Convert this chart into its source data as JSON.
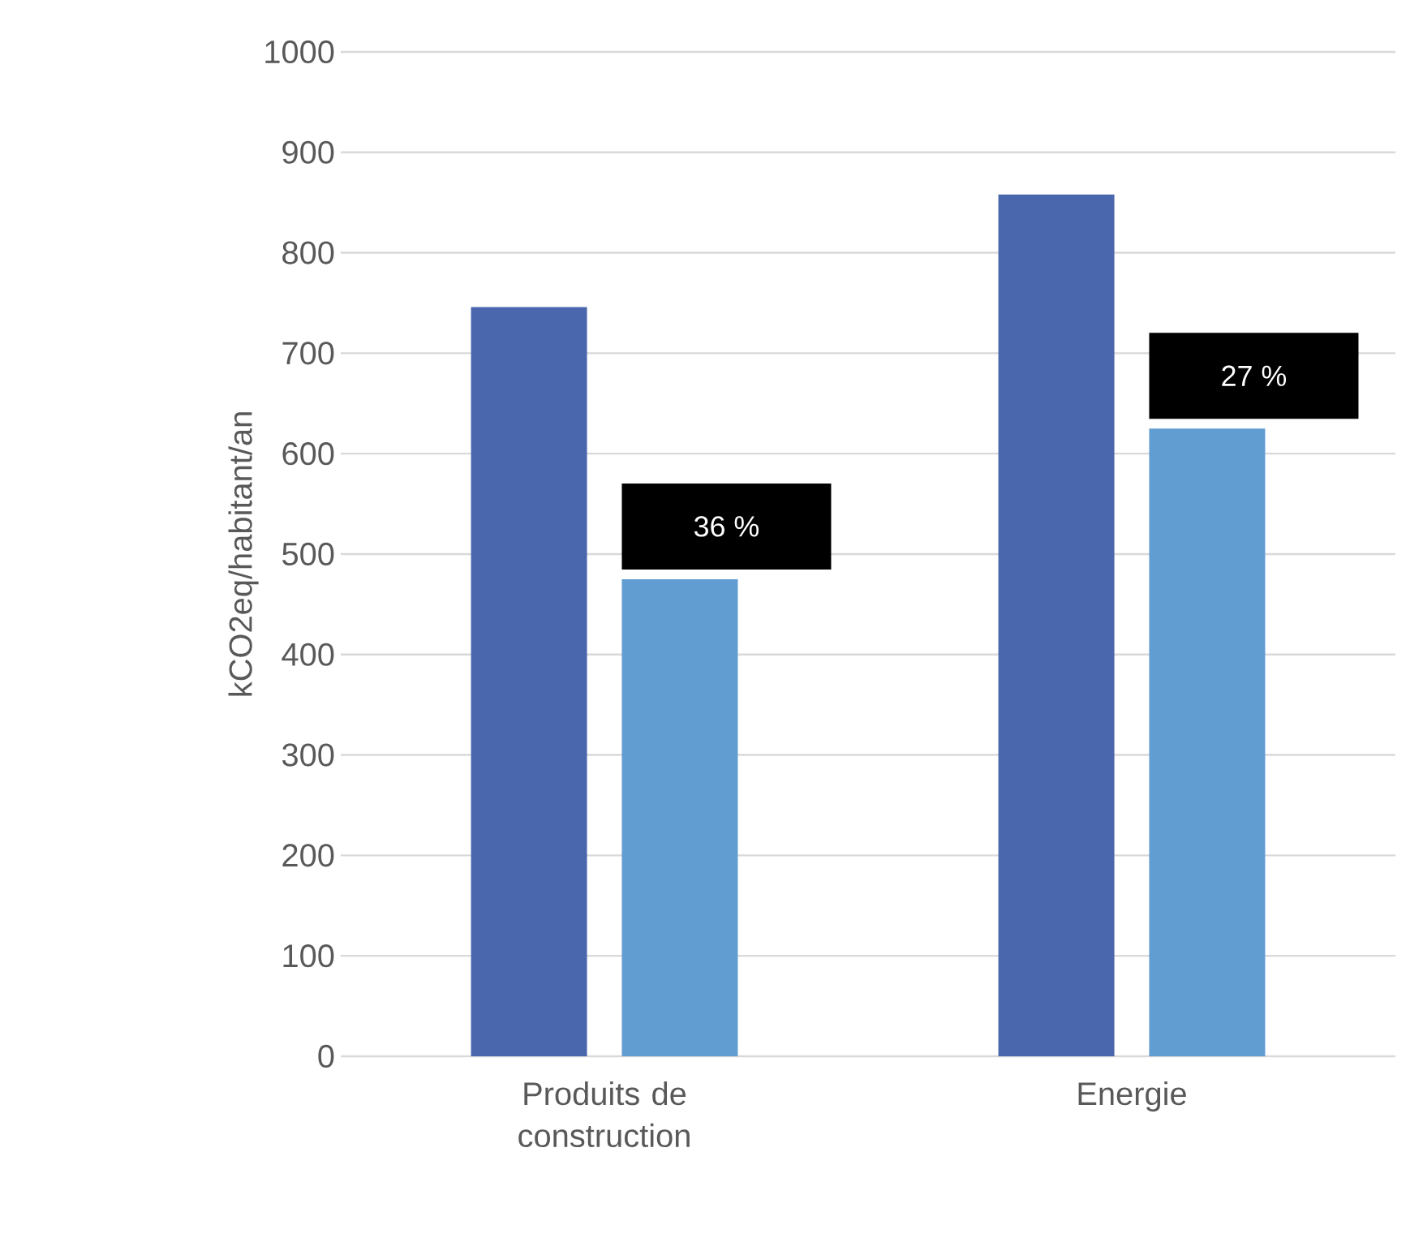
{
  "chart_data": {
    "type": "bar",
    "ylabel": "kCO2eq/habitant/an",
    "categories": [
      "Produits de construction",
      "Energie"
    ],
    "series": [
      {
        "color": "#4a67ad",
        "values": [
          746,
          858
        ]
      },
      {
        "color": "#629dd1",
        "values": [
          475,
          625
        ]
      }
    ],
    "ylim": [
      0,
      1000
    ],
    "yticks": [
      0,
      100,
      200,
      300,
      400,
      500,
      600,
      700,
      800,
      900,
      1000
    ],
    "grid": "y",
    "annotations": [
      "36 %",
      "27 %"
    ]
  }
}
